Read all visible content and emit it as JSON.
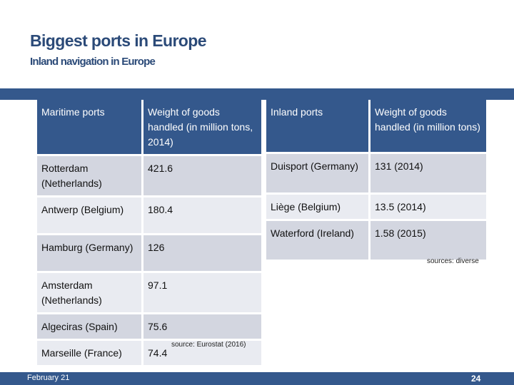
{
  "header": {
    "title": "Biggest ports in Europe",
    "subtitle": "Inland navigation in Europe"
  },
  "maritime": {
    "headers": [
      "Maritime ports",
      "Weight of goods handled (in million tons, 2014)"
    ],
    "rows": [
      [
        "Rotterdam (Netherlands)",
        "421.6"
      ],
      [
        "Antwerp (Belgium)",
        "180.4"
      ],
      [
        "Hamburg (Germany)",
        "126"
      ],
      [
        "Amsterdam (Netherlands)",
        "97.1"
      ],
      [
        "Algeciras (Spain)",
        "75.6"
      ],
      [
        "Marseille (France)",
        "74.4"
      ]
    ],
    "source": "source: Eurostat (2016)"
  },
  "inland": {
    "headers": [
      "Inland ports",
      "Weight of goods handled (in million tons)"
    ],
    "rows": [
      [
        "Duisport (Germany)",
        "131 (2014)"
      ],
      [
        "Liège (Belgium)",
        "13.5 (2014)"
      ],
      [
        "Waterford (Ireland)",
        "1.58 (2015)"
      ]
    ],
    "source": "sources: diverse"
  },
  "footer": {
    "date": "February 21",
    "page": "24"
  },
  "colors": {
    "accent": "#34588c",
    "title": "#2b4a78",
    "row_dark": "#d3d6e0",
    "row_light": "#e9ebf1"
  }
}
